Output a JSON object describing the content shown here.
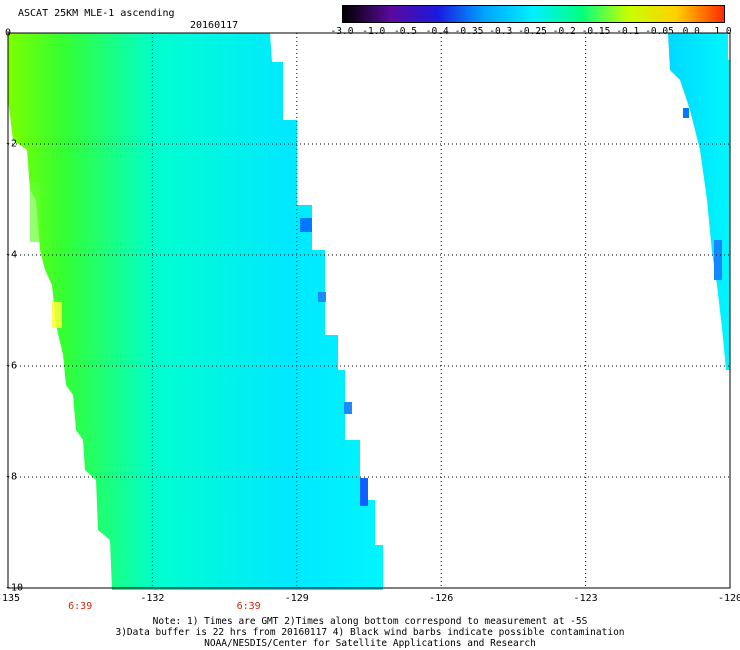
{
  "header": {
    "title": "ASCAT 25KM MLE-1 ascending",
    "date": "20160117"
  },
  "colorbar": {
    "ticks": [
      "-3.0",
      "-1.0",
      "-0.5",
      "-0.4",
      "-0.35",
      "-0.3",
      "-0.25",
      "-0.2",
      "-0.15",
      "-0.1",
      "-0.05",
      "0.0",
      "1.0"
    ],
    "colors": [
      "#000000",
      "#5a0a9a",
      "#1a1ae0",
      "#00a8ff",
      "#00f0ff",
      "#00ff80",
      "#c8ff00",
      "#ffd000",
      "#ff2a00"
    ]
  },
  "axes": {
    "x_ticks": [
      "-135",
      "-132",
      "-129",
      "-126",
      "-123",
      "-120"
    ],
    "y_ticks": [
      "0",
      "-2",
      "-4",
      "-6",
      "-8",
      "-10"
    ],
    "xlim": [
      -135,
      -120
    ],
    "ylim": [
      -10,
      0
    ]
  },
  "time_labels": [
    {
      "text": "6:39",
      "lon": -133.5
    },
    {
      "text": "6:39",
      "lon": -130.0
    }
  ],
  "notes": [
    "Note: 1) Times are GMT 2)Times along bottom correspond to measurement at -5S",
    "3)Data buffer is 22 hrs from 20160117 4) Black wind barbs indicate possible contamination",
    "NOAA/NESDIS/Center for Satellite Applications and Research"
  ]
}
